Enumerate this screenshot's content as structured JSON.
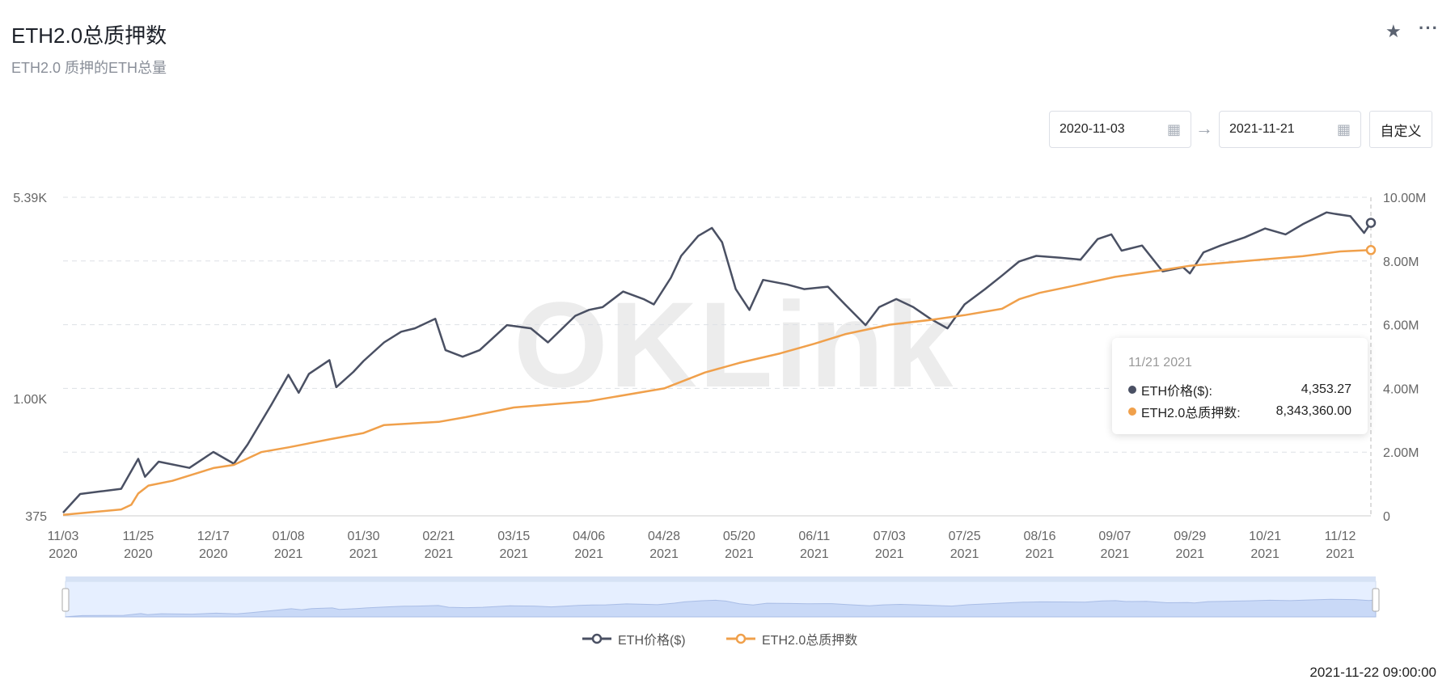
{
  "header": {
    "title": "ETH2.0总质押数",
    "subtitle": "ETH2.0 质押的ETH总量",
    "star_icon": "star-icon",
    "more_icon": "more-icon"
  },
  "date_range": {
    "start": "2020-11-03",
    "end": "2021-11-21",
    "custom_label": "自定义"
  },
  "tooltip": {
    "date": "11/21 2021",
    "rows": [
      {
        "label": "ETH价格($):",
        "value": "4,353.27",
        "color": "#4a5063"
      },
      {
        "label": "ETH2.0总质押数:",
        "value": "8,343,360.00",
        "color": "#f0a04b"
      }
    ]
  },
  "watermark": "OKLink",
  "timestamp": "2021-11-22 09:00:00",
  "chart_data": {
    "type": "line",
    "legend": [
      "ETH价格($)",
      "ETH2.0总质押数"
    ],
    "legend_position": "bottom",
    "colors": [
      "#4a5063",
      "#f0a04b"
    ],
    "left_axis": {
      "scale": "log",
      "range": [
        375,
        5390
      ],
      "ticks": [
        {
          "v": 375,
          "label": "375"
        },
        {
          "v": 1000,
          "label": "1.00K"
        },
        {
          "v": 5390,
          "label": "5.39K"
        }
      ]
    },
    "right_axis": {
      "range": [
        0,
        10000000
      ],
      "ticks": [
        {
          "v": 0,
          "label": "0"
        },
        {
          "v": 2000000,
          "label": "2.00M"
        },
        {
          "v": 4000000,
          "label": "4.00M"
        },
        {
          "v": 6000000,
          "label": "6.00M"
        },
        {
          "v": 8000000,
          "label": "8.00M"
        },
        {
          "v": 10000000,
          "label": "10.00M"
        }
      ]
    },
    "x_range": [
      "2020-11-03",
      "2021-11-21"
    ],
    "x_ticks": [
      [
        "11/03",
        "2020"
      ],
      [
        "11/25",
        "2020"
      ],
      [
        "12/17",
        "2020"
      ],
      [
        "01/08",
        "2021"
      ],
      [
        "01/30",
        "2021"
      ],
      [
        "02/21",
        "2021"
      ],
      [
        "03/15",
        "2021"
      ],
      [
        "04/06",
        "2021"
      ],
      [
        "04/28",
        "2021"
      ],
      [
        "05/20",
        "2021"
      ],
      [
        "06/11",
        "2021"
      ],
      [
        "07/03",
        "2021"
      ],
      [
        "07/25",
        "2021"
      ],
      [
        "08/16",
        "2021"
      ],
      [
        "09/07",
        "2021"
      ],
      [
        "09/29",
        "2021"
      ],
      [
        "10/21",
        "2021"
      ],
      [
        "11/12",
        "2021"
      ]
    ],
    "series": [
      {
        "name": "ETH价格($)",
        "axis": "left",
        "points": [
          [
            "2020-11-03",
            385
          ],
          [
            "2020-11-08",
            450
          ],
          [
            "2020-11-14",
            460
          ],
          [
            "2020-11-20",
            470
          ],
          [
            "2020-11-25",
            604
          ],
          [
            "2020-11-27",
            520
          ],
          [
            "2020-12-01",
            590
          ],
          [
            "2020-12-10",
            560
          ],
          [
            "2020-12-17",
            640
          ],
          [
            "2020-12-23",
            580
          ],
          [
            "2020-12-27",
            680
          ],
          [
            "2021-01-03",
            950
          ],
          [
            "2021-01-08",
            1220
          ],
          [
            "2021-01-11",
            1050
          ],
          [
            "2021-01-14",
            1230
          ],
          [
            "2021-01-20",
            1380
          ],
          [
            "2021-01-22",
            1100
          ],
          [
            "2021-01-27",
            1250
          ],
          [
            "2021-01-30",
            1370
          ],
          [
            "2021-02-05",
            1600
          ],
          [
            "2021-02-10",
            1750
          ],
          [
            "2021-02-14",
            1800
          ],
          [
            "2021-02-20",
            1950
          ],
          [
            "2021-02-23",
            1500
          ],
          [
            "2021-02-28",
            1420
          ],
          [
            "2021-03-05",
            1500
          ],
          [
            "2021-03-13",
            1850
          ],
          [
            "2021-03-20",
            1800
          ],
          [
            "2021-03-25",
            1600
          ],
          [
            "2021-04-02",
            2000
          ],
          [
            "2021-04-06",
            2100
          ],
          [
            "2021-04-10",
            2150
          ],
          [
            "2021-04-16",
            2450
          ],
          [
            "2021-04-22",
            2300
          ],
          [
            "2021-04-25",
            2200
          ],
          [
            "2021-04-30",
            2750
          ],
          [
            "2021-05-03",
            3300
          ],
          [
            "2021-05-08",
            3900
          ],
          [
            "2021-05-12",
            4170
          ],
          [
            "2021-05-15",
            3700
          ],
          [
            "2021-05-19",
            2500
          ],
          [
            "2021-05-23",
            2100
          ],
          [
            "2021-05-27",
            2700
          ],
          [
            "2021-06-03",
            2600
          ],
          [
            "2021-06-08",
            2500
          ],
          [
            "2021-06-15",
            2550
          ],
          [
            "2021-06-20",
            2200
          ],
          [
            "2021-06-26",
            1850
          ],
          [
            "2021-06-30",
            2150
          ],
          [
            "2021-07-05",
            2300
          ],
          [
            "2021-07-10",
            2150
          ],
          [
            "2021-07-15",
            1950
          ],
          [
            "2021-07-20",
            1800
          ],
          [
            "2021-07-25",
            2200
          ],
          [
            "2021-07-31",
            2500
          ],
          [
            "2021-08-05",
            2800
          ],
          [
            "2021-08-10",
            3150
          ],
          [
            "2021-08-15",
            3300
          ],
          [
            "2021-08-22",
            3250
          ],
          [
            "2021-08-28",
            3200
          ],
          [
            "2021-09-02",
            3800
          ],
          [
            "2021-09-06",
            3950
          ],
          [
            "2021-09-09",
            3450
          ],
          [
            "2021-09-15",
            3600
          ],
          [
            "2021-09-21",
            2900
          ],
          [
            "2021-09-27",
            3000
          ],
          [
            "2021-09-29",
            2850
          ],
          [
            "2021-10-03",
            3400
          ],
          [
            "2021-10-08",
            3600
          ],
          [
            "2021-10-15",
            3850
          ],
          [
            "2021-10-21",
            4150
          ],
          [
            "2021-10-27",
            3950
          ],
          [
            "2021-11-01",
            4300
          ],
          [
            "2021-11-08",
            4750
          ],
          [
            "2021-11-10",
            4700
          ],
          [
            "2021-11-15",
            4600
          ],
          [
            "2021-11-19",
            4000
          ],
          [
            "2021-11-21",
            4353.27
          ]
        ]
      },
      {
        "name": "ETH2.0总质押数",
        "axis": "right",
        "points": [
          [
            "2020-11-03",
            30000
          ],
          [
            "2020-11-20",
            200000
          ],
          [
            "2020-11-23",
            350000
          ],
          [
            "2020-11-25",
            700000
          ],
          [
            "2020-11-28",
            950000
          ],
          [
            "2020-12-05",
            1100000
          ],
          [
            "2020-12-17",
            1500000
          ],
          [
            "2020-12-23",
            1600000
          ],
          [
            "2020-12-31",
            2000000
          ],
          [
            "2021-01-08",
            2150000
          ],
          [
            "2021-01-20",
            2400000
          ],
          [
            "2021-01-30",
            2600000
          ],
          [
            "2021-02-05",
            2850000
          ],
          [
            "2021-02-21",
            2950000
          ],
          [
            "2021-03-01",
            3100000
          ],
          [
            "2021-03-15",
            3400000
          ],
          [
            "2021-04-06",
            3600000
          ],
          [
            "2021-04-28",
            4000000
          ],
          [
            "2021-05-10",
            4500000
          ],
          [
            "2021-05-20",
            4800000
          ],
          [
            "2021-06-01",
            5100000
          ],
          [
            "2021-06-11",
            5400000
          ],
          [
            "2021-06-20",
            5700000
          ],
          [
            "2021-07-03",
            6000000
          ],
          [
            "2021-07-15",
            6150000
          ],
          [
            "2021-07-25",
            6300000
          ],
          [
            "2021-08-05",
            6500000
          ],
          [
            "2021-08-10",
            6800000
          ],
          [
            "2021-08-16",
            7000000
          ],
          [
            "2021-08-25",
            7200000
          ],
          [
            "2021-09-07",
            7500000
          ],
          [
            "2021-09-20",
            7700000
          ],
          [
            "2021-09-29",
            7850000
          ],
          [
            "2021-10-21",
            8050000
          ],
          [
            "2021-11-01",
            8150000
          ],
          [
            "2021-11-12",
            8300000
          ],
          [
            "2021-11-21",
            8343360
          ]
        ]
      }
    ]
  }
}
